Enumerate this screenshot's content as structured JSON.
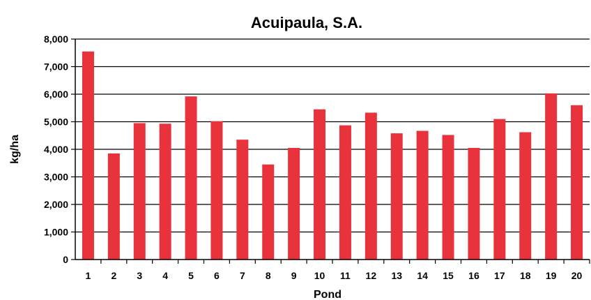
{
  "chart_data": {
    "type": "bar",
    "title": "Acuipaula, S.A.",
    "xlabel": "Pond",
    "ylabel": "kg/ha",
    "ylim": [
      0,
      8000
    ],
    "yticks": [
      "0",
      "1,000",
      "2,000",
      "3,000",
      "4,000",
      "5,000",
      "6,000",
      "7,000",
      "8,000"
    ],
    "ytick_values": [
      0,
      1000,
      2000,
      3000,
      4000,
      5000,
      6000,
      7000,
      8000
    ],
    "categories": [
      "1",
      "2",
      "3",
      "4",
      "5",
      "6",
      "7",
      "8",
      "9",
      "10",
      "11",
      "12",
      "13",
      "14",
      "15",
      "16",
      "17",
      "18",
      "19",
      "20"
    ],
    "values": [
      7550,
      3850,
      4950,
      4930,
      5920,
      5020,
      4350,
      3450,
      4050,
      5450,
      4870,
      5330,
      4580,
      4670,
      4520,
      4050,
      5100,
      4620,
      6030,
      5600
    ],
    "grid": true,
    "bar_color": "#e8323c"
  }
}
